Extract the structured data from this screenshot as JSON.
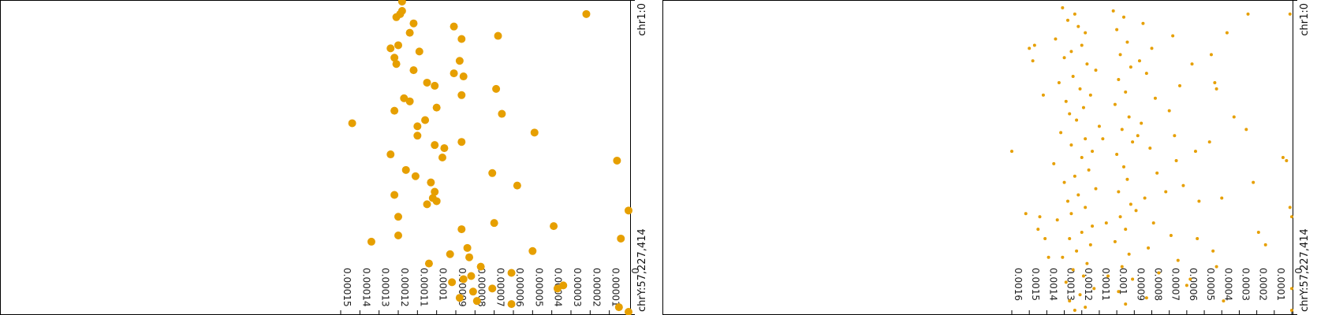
{
  "chart_data": [
    {
      "type": "scatter",
      "title": "",
      "xlabel": "",
      "ylabel": "",
      "orientation": "rotated-90-clockwise",
      "range_start_label": "chr1:0",
      "range_end_label": "chrY:57,227,414",
      "x_ticks": [
        "0.00015",
        "0.00014",
        "0.00013",
        "0.00012",
        "0.00011",
        "0.0001",
        "0.00009",
        "0.00008",
        "0.00007",
        "0.00006",
        "0.00005",
        "0.00004",
        "0.00003",
        "0.00002",
        "0.00001",
        "0"
      ],
      "xlim": [
        0.000155,
        0
      ],
      "color": "#e69f00",
      "grid": false,
      "points": [
        [
          0.000118,
          0
        ],
        [
          2.2e-05,
          0.04
        ],
        [
          0.000118,
          0.03
        ],
        [
          0.000119,
          0.04
        ],
        [
          0.000121,
          0.05
        ],
        [
          0.000112,
          0.07
        ],
        [
          6.8e-05,
          0.11
        ],
        [
          9.1e-05,
          0.08
        ],
        [
          0.000114,
          0.1
        ],
        [
          8.7e-05,
          0.12
        ],
        [
          0.000124,
          0.15
        ],
        [
          0.00012,
          0.14
        ],
        [
          0.000122,
          0.18
        ],
        [
          0.000121,
          0.2
        ],
        [
          0.000109,
          0.16
        ],
        [
          8.8e-05,
          0.19
        ],
        [
          0.000112,
          0.22
        ],
        [
          9.1e-05,
          0.23
        ],
        [
          8.6e-05,
          0.24
        ],
        [
          0.000105,
          0.26
        ],
        [
          0.000101,
          0.27
        ],
        [
          6.9e-05,
          0.28
        ],
        [
          8.7e-05,
          0.3
        ],
        [
          0.000117,
          0.31
        ],
        [
          0.000114,
          0.32
        ],
        [
          0.0001,
          0.34
        ],
        [
          0.000122,
          0.35
        ],
        [
          0.000106,
          0.38
        ],
        [
          0.000144,
          0.39
        ],
        [
          0.00011,
          0.4
        ],
        [
          6.6e-05,
          0.36
        ],
        [
          4.9e-05,
          0.42
        ],
        [
          0.00011,
          0.43
        ],
        [
          8.7e-05,
          0.45
        ],
        [
          0.000101,
          0.46
        ],
        [
          9.6e-05,
          0.47
        ],
        [
          0.000124,
          0.49
        ],
        [
          9.7e-05,
          0.5
        ],
        [
          0.000116,
          0.54
        ],
        [
          0.000111,
          0.56
        ],
        [
          7.1e-05,
          0.55
        ],
        [
          5.8e-05,
          0.59
        ],
        [
          6e-06,
          0.51
        ],
        [
          0.000103,
          0.58
        ],
        [
          0.000101,
          0.61
        ],
        [
          0.000122,
          0.62
        ],
        [
          0.0001,
          0.64
        ],
        [
          0.000105,
          0.65
        ],
        [
          0.000102,
          0.63
        ],
        [
          0.00012,
          0.69
        ],
        [
          0.0,
          0.67
        ],
        [
          7e-05,
          0.71
        ],
        [
          8.7e-05,
          0.73
        ],
        [
          0.00012,
          0.75
        ],
        [
          3.9e-05,
          0.72
        ],
        [
          4e-06,
          0.76
        ],
        [
          0.000134,
          0.77
        ],
        [
          8.4e-05,
          0.79
        ],
        [
          5e-05,
          0.8
        ],
        [
          8.3e-05,
          0.82
        ],
        [
          9.3e-05,
          0.81
        ],
        [
          0.000104,
          0.84
        ],
        [
          7.7e-05,
          0.85
        ],
        [
          6.1e-05,
          0.87
        ],
        [
          8.6e-05,
          0.89
        ],
        [
          8.2e-05,
          0.88
        ],
        [
          9.2e-05,
          0.9
        ],
        [
          7.1e-05,
          0.92
        ],
        [
          8.1e-05,
          0.93
        ],
        [
          3.4e-05,
          0.91
        ],
        [
          3.7e-05,
          0.92
        ],
        [
          8.8e-05,
          0.95
        ],
        [
          7.9e-05,
          0.96
        ],
        [
          6.1e-05,
          0.97
        ],
        [
          5e-06,
          0.98
        ],
        [
          0.0,
          0.995
        ]
      ]
    },
    {
      "type": "scatter",
      "title": "",
      "xlabel": "",
      "ylabel": "",
      "orientation": "rotated-90-clockwise",
      "range_start_label": "chr1:0",
      "range_end_label": "chrY:57,227,414",
      "x_ticks": [
        "0.0016",
        "0.0015",
        "0.0014",
        "0.0013",
        "0.0012",
        "0.0011",
        "0.001",
        "0.0009",
        "0.0008",
        "0.0007",
        "0.0006",
        "0.0005",
        "0.0004",
        "0.0003",
        "0.0002",
        "0.0001",
        "0"
      ],
      "xlim": [
        0.0016,
        0
      ],
      "color": "#e69f00",
      "grid": false,
      "points": [
        [
          0.00131,
          0.02
        ],
        [
          0.00124,
          0.04
        ],
        [
          0.00128,
          0.06
        ],
        [
          0.00122,
          0.08
        ],
        [
          0.00118,
          0.1
        ],
        [
          0.00135,
          0.12
        ],
        [
          0.0012,
          0.14
        ],
        [
          0.00126,
          0.16
        ],
        [
          0.0013,
          0.18
        ],
        [
          0.00117,
          0.2
        ],
        [
          0.00112,
          0.22
        ],
        [
          0.00125,
          0.24
        ],
        [
          0.00133,
          0.26
        ],
        [
          0.00121,
          0.28
        ],
        [
          0.00115,
          0.3
        ],
        [
          0.00129,
          0.32
        ],
        [
          0.00119,
          0.34
        ],
        [
          0.00127,
          0.36
        ],
        [
          0.00123,
          0.38
        ],
        [
          0.0011,
          0.4
        ],
        [
          0.00132,
          0.42
        ],
        [
          0.00118,
          0.44
        ],
        [
          0.00126,
          0.46
        ],
        [
          0.00114,
          0.48
        ],
        [
          0.0012,
          0.5
        ],
        [
          0.00136,
          0.52
        ],
        [
          0.00116,
          0.54
        ],
        [
          0.00124,
          0.56
        ],
        [
          0.0013,
          0.58
        ],
        [
          0.00112,
          0.6
        ],
        [
          0.00122,
          0.62
        ],
        [
          0.00128,
          0.64
        ],
        [
          0.00118,
          0.66
        ],
        [
          0.00126,
          0.68
        ],
        [
          0.00134,
          0.7
        ],
        [
          0.00114,
          0.72
        ],
        [
          0.0012,
          0.74
        ],
        [
          0.00127,
          0.76
        ],
        [
          0.00115,
          0.78
        ],
        [
          0.00123,
          0.8
        ],
        [
          0.00131,
          0.82
        ],
        [
          0.00117,
          0.84
        ],
        [
          0.00125,
          0.86
        ],
        [
          0.00119,
          0.88
        ],
        [
          0.00129,
          0.9
        ],
        [
          0.00113,
          0.92
        ],
        [
          0.00121,
          0.94
        ],
        [
          0.00127,
          0.96
        ],
        [
          0.00118,
          0.98
        ],
        [
          0.00124,
          0.99
        ],
        [
          0.00102,
          0.03
        ],
        [
          0.00096,
          0.05
        ],
        [
          0.001,
          0.09
        ],
        [
          0.00094,
          0.13
        ],
        [
          0.00098,
          0.17
        ],
        [
          0.00092,
          0.21
        ],
        [
          0.00099,
          0.25
        ],
        [
          0.00095,
          0.29
        ],
        [
          0.00101,
          0.33
        ],
        [
          0.00093,
          0.37
        ],
        [
          0.00097,
          0.41
        ],
        [
          0.00091,
          0.45
        ],
        [
          0.001,
          0.49
        ],
        [
          0.00096,
          0.53
        ],
        [
          0.00094,
          0.57
        ],
        [
          0.00099,
          0.61
        ],
        [
          0.00092,
          0.65
        ],
        [
          0.00098,
          0.69
        ],
        [
          0.00095,
          0.73
        ],
        [
          0.00101,
          0.77
        ],
        [
          0.00093,
          0.81
        ],
        [
          0.00097,
          0.85
        ],
        [
          0.00091,
          0.89
        ],
        [
          0.00099,
          0.93
        ],
        [
          0.00095,
          0.97
        ],
        [
          0.00085,
          0.07
        ],
        [
          0.0008,
          0.15
        ],
        [
          0.00083,
          0.23
        ],
        [
          0.00078,
          0.31
        ],
        [
          0.00086,
          0.39
        ],
        [
          0.00081,
          0.47
        ],
        [
          0.00077,
          0.55
        ],
        [
          0.00084,
          0.63
        ],
        [
          0.00079,
          0.71
        ],
        [
          0.00082,
          0.79
        ],
        [
          0.00076,
          0.87
        ],
        [
          0.00083,
          0.95
        ],
        [
          0.00087,
          0.19
        ],
        [
          0.00088,
          0.43
        ],
        [
          0.00089,
          0.67
        ],
        [
          0.00068,
          0.11
        ],
        [
          0.00064,
          0.27
        ],
        [
          0.0007,
          0.35
        ],
        [
          0.00066,
          0.51
        ],
        [
          0.00062,
          0.59
        ],
        [
          0.00069,
          0.75
        ],
        [
          0.00065,
          0.83
        ],
        [
          0.0006,
          0.91
        ],
        [
          0.00072,
          0.61
        ],
        [
          0.00067,
          0.43
        ],
        [
          0.00057,
          0.2
        ],
        [
          0.00055,
          0.48
        ],
        [
          0.00054,
          0.76
        ],
        [
          0.00058,
          0.89
        ],
        [
          0.00053,
          0.64
        ],
        [
          0.00046,
          0.17
        ],
        [
          0.00043,
          0.28
        ],
        [
          0.00044,
          0.26
        ],
        [
          0.00047,
          0.45
        ],
        [
          0.00045,
          0.8
        ],
        [
          0.0004,
          0.63
        ],
        [
          0.00043,
          0.85
        ],
        [
          0.00033,
          0.37
        ],
        [
          0.00039,
          0.96
        ],
        [
          0.00037,
          0.1
        ],
        [
          0.00025,
          0.04
        ],
        [
          0.00026,
          0.41
        ],
        [
          0.00022,
          0.58
        ],
        [
          0.00019,
          0.74
        ],
        [
          0.00015,
          0.78
        ],
        [
          5e-05,
          0.5
        ],
        [
          3e-05,
          0.51
        ],
        [
          1e-05,
          0.04
        ],
        [
          1e-05,
          0.66
        ],
        [
          0.0,
          0.69
        ],
        [
          0.0,
          0.92
        ],
        [
          0.0,
          0.99
        ],
        [
          0.0016,
          0.48
        ],
        [
          0.00142,
          0.3
        ],
        [
          0.00144,
          0.69
        ],
        [
          0.00148,
          0.19
        ],
        [
          0.00145,
          0.73
        ],
        [
          0.00141,
          0.76
        ],
        [
          0.00139,
          0.82
        ],
        [
          0.0015,
          0.15
        ],
        [
          0.00152,
          0.68
        ],
        [
          0.00147,
          0.14
        ],
        [
          0.00106,
          0.71
        ],
        [
          0.00108,
          0.44
        ],
        [
          0.00105,
          0.88
        ]
      ]
    }
  ]
}
